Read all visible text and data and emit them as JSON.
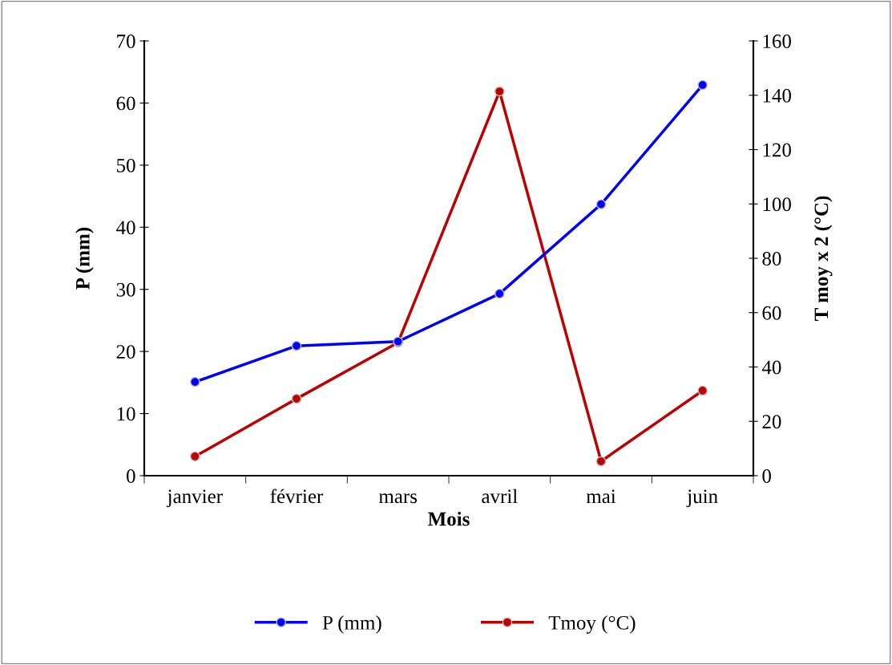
{
  "chart_data": {
    "type": "line",
    "xlabel": "Mois",
    "ylabel": "P (mm)",
    "y2label": "T moy x 2 (°C)",
    "categories": [
      "janvier",
      "février",
      "mars",
      "avril",
      "mai",
      "juin"
    ],
    "series": [
      {
        "name": "P (mm)",
        "color": "#0000ff",
        "values": [
          15.1,
          20.9,
          21.6,
          29.3,
          43.7,
          62.9
        ]
      },
      {
        "name": "Tmoy (°C)",
        "color": "#c00000",
        "axis": "y2",
        "values": [
          7.1,
          28.3,
          49,
          141.4,
          5.3,
          31.3
        ]
      }
    ],
    "ylim": [
      0,
      70
    ],
    "yticks": [
      0,
      10,
      20,
      30,
      40,
      50,
      60,
      70
    ],
    "y2lim": [
      0,
      160
    ],
    "y2ticks": [
      0,
      20,
      40,
      60,
      80,
      100,
      120,
      140,
      160
    ],
    "marker": "circle",
    "line_style": "solid",
    "legend": "bottom",
    "grid": false
  }
}
